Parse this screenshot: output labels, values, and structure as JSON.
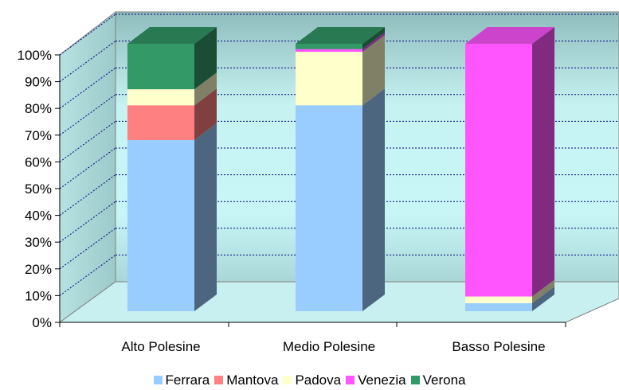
{
  "chart_data": {
    "type": "bar",
    "subtype": "stacked-100-percent-3d",
    "categories": [
      "Alto Polesine",
      "Medio Polesine",
      "Basso Polesine"
    ],
    "series": [
      {
        "name": "Ferrara",
        "color": "#99ccff",
        "values": [
          64,
          77,
          3
        ]
      },
      {
        "name": "Mantova",
        "color": "#ff8080",
        "values": [
          13,
          0,
          0
        ]
      },
      {
        "name": "Padova",
        "color": "#ffffcc",
        "values": [
          6,
          20,
          2.5
        ]
      },
      {
        "name": "Venezia",
        "color": "#ff55ff",
        "values": [
          0,
          1,
          94.5
        ]
      },
      {
        "name": "Verona",
        "color": "#339966",
        "values": [
          17,
          2,
          0
        ]
      }
    ],
    "y_ticks": [
      "0%",
      "10%",
      "20%",
      "30%",
      "40%",
      "50%",
      "60%",
      "70%",
      "80%",
      "90%",
      "100%"
    ],
    "ylim": [
      0,
      100
    ],
    "grid": true,
    "legend_position": "bottom",
    "wall_color": "#a6cdcd",
    "floor_color": "#c8f0f0"
  }
}
